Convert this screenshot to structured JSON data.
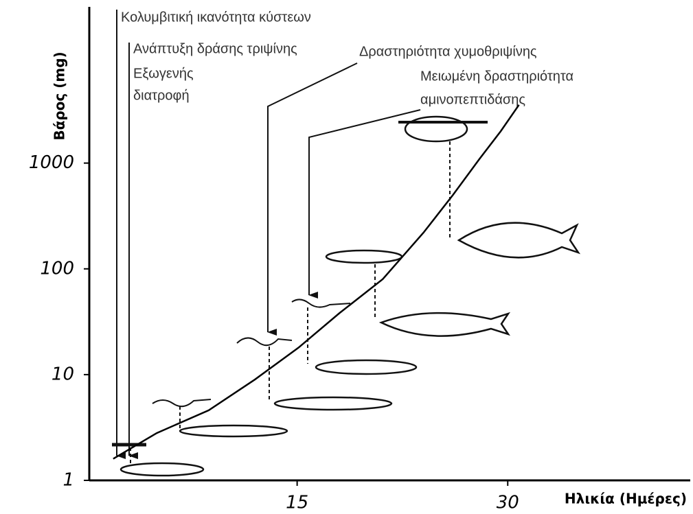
{
  "chart_data": {
    "type": "line",
    "y_label": "Βάρος (mg)",
    "x_label": "Ηλικία (Ημέρες)",
    "x": [
      1.9,
      5,
      8.7,
      12,
      15.1,
      18,
      21.1,
      24,
      26.1,
      28,
      29.5,
      30.8
    ],
    "values": [
      1.6,
      2.8,
      4.6,
      9,
      18,
      38,
      80,
      220,
      500,
      1100,
      2000,
      3550
    ],
    "color": "#000000",
    "log_y": true,
    "xlim": [
      0,
      43
    ],
    "xticks": [
      15,
      30
    ],
    "ylim": [
      1,
      30000
    ],
    "yticks": [
      1,
      10,
      100,
      1000
    ],
    "annotations": [
      [
        "Κολυμβιτική ικανότητα κύστεων"
      ],
      [
        "Ανάπτυξη δράσης τριψίνης"
      ],
      [
        "Εξωγενής",
        "διατροφή"
      ],
      [
        "Δραστηριότητα χυμοθριψίνης"
      ],
      [
        "Μειωμένη δραστηριότητα",
        "αμινοπεπτιδάσης"
      ]
    ]
  }
}
